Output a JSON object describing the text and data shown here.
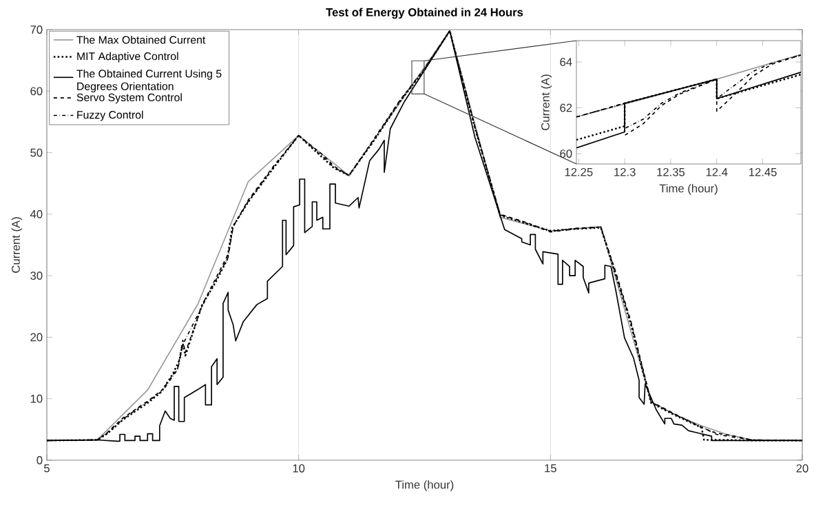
{
  "chart_data": [
    {
      "type": "line",
      "title": "Test of Energy Obtained in 24 Hours",
      "xlabel": "Time (hour)",
      "ylabel": "Current (A)",
      "xlim": [
        5,
        20
      ],
      "ylim": [
        0,
        70
      ],
      "xticks": [
        5,
        10,
        15,
        20
      ],
      "yticks": [
        0,
        10,
        20,
        30,
        40,
        50,
        60,
        70
      ],
      "grid": "x",
      "legend": "top left",
      "series": [
        {
          "name": "The Max Obtained Current",
          "color": "#999999",
          "line_style": "solid",
          "x": [
            5,
            6,
            7,
            8,
            9,
            10,
            11,
            12,
            13,
            14,
            15,
            16,
            17,
            17.5,
            18,
            18.5,
            19,
            20
          ],
          "values": [
            3.2,
            3.3,
            11.4,
            25.4,
            45.3,
            52.8,
            46.3,
            58,
            69.8,
            39.5,
            37.3,
            38,
            9.5,
            7.3,
            5.6,
            4.2,
            3.3,
            3.2
          ]
        },
        {
          "name": "MIT Adaptive Control",
          "color": "#000000",
          "line_style": "dotted",
          "x": [
            5,
            6,
            6.2,
            6.5,
            6.8,
            7,
            7.26,
            7.5,
            7.63,
            7.7,
            7.75,
            8.08,
            8.35,
            8.58,
            8.68,
            9,
            9.5,
            10,
            10.3,
            10.5,
            10.7,
            11,
            11.5,
            12,
            12.5,
            13,
            13.5,
            14,
            14.5,
            15,
            15.5,
            16,
            16.3,
            16.6,
            16.8,
            17,
            17.5,
            18,
            18.05,
            18.5,
            19,
            20
          ],
          "values": [
            3.2,
            3.3,
            4.3,
            6.5,
            8.2,
            9.3,
            11,
            14,
            16.2,
            19,
            17,
            25.2,
            28.9,
            32.6,
            37.8,
            42,
            47.5,
            52.8,
            50.5,
            49,
            47.5,
            46.3,
            52,
            58.2,
            63.5,
            69.8,
            54,
            39.8,
            38.5,
            37.3,
            37.6,
            37.8,
            30,
            22,
            15.5,
            9.3,
            7.2,
            5.3,
            3.3,
            3.3,
            3.2,
            3.2
          ]
        },
        {
          "name": "The Obtained Current Using 5 Degrees Orientation",
          "color": "#000000",
          "line_style": "solid",
          "x": [
            5,
            6,
            6.39,
            6.45,
            6.45,
            6.55,
            6.55,
            6.75,
            6.75,
            6.85,
            6.85,
            7.0,
            7.0,
            7.1,
            7.1,
            7.24,
            7.24,
            7.35,
            7.45,
            7.53,
            7.53,
            7.62,
            7.62,
            7.73,
            7.73,
            7.86,
            8.0,
            8.15,
            8.15,
            8.27,
            8.27,
            8.38,
            8.38,
            8.5,
            8.5,
            8.6,
            8.6,
            8.7,
            8.75,
            8.9,
            9.17,
            9.38,
            9.38,
            9.68,
            9.68,
            9.75,
            9.75,
            9.9,
            9.9,
            10.02,
            10.02,
            10.12,
            10.12,
            10.27,
            10.27,
            10.36,
            10.36,
            10.48,
            10.48,
            10.62,
            10.62,
            10.73,
            10.73,
            11.0,
            11.18,
            11.2,
            11.32,
            11.41,
            11.59,
            11.7,
            11.7,
            11.82,
            12.1,
            13,
            13.5,
            14.09,
            14.43,
            14.43,
            14.6,
            14.6,
            14.7,
            14.7,
            14.85,
            14.85,
            15.15,
            15.15,
            15.24,
            15.24,
            15.38,
            15.38,
            15.49,
            15.49,
            15.65,
            15.65,
            15.76,
            15.76,
            16.08,
            16.08,
            16.2,
            16.3,
            16.47,
            16.65,
            16.76,
            16.76,
            16.86,
            16.88,
            17.1,
            17.27,
            17.27,
            17.4,
            17.45,
            17.61,
            17.74,
            18.2,
            18.2,
            20
          ],
          "values": [
            3.2,
            3.3,
            3.1,
            3.1,
            4.2,
            4.2,
            3.2,
            3.2,
            3.9,
            3.9,
            3.2,
            3.2,
            4.3,
            4.3,
            3.2,
            3.2,
            5.6,
            8,
            6.8,
            6.5,
            12.0,
            12.0,
            6.3,
            6.3,
            10.2,
            10.8,
            11.5,
            12.3,
            9,
            9,
            15.2,
            16.5,
            12.3,
            13.5,
            25.5,
            27.3,
            24.4,
            22,
            19.4,
            22.5,
            25.3,
            26.3,
            29.1,
            31.5,
            39,
            39,
            33.4,
            34.9,
            41.2,
            41.5,
            45.7,
            45.7,
            37,
            38,
            42,
            42,
            39,
            39.5,
            37.6,
            37.6,
            44.9,
            44.9,
            41.8,
            41.3,
            42.7,
            41,
            45.4,
            48.7,
            50.5,
            52,
            46.8,
            53.9,
            58.3,
            69.8,
            52.5,
            37.5,
            36,
            35.5,
            35,
            36.7,
            36.7,
            34.3,
            31.9,
            33.9,
            33.5,
            28.6,
            28.6,
            32.5,
            31.5,
            30.0,
            30.0,
            32.5,
            31.5,
            29.7,
            27.2,
            28.8,
            29.5,
            31.7,
            31.5,
            27.5,
            19.9,
            16.6,
            13,
            10.2,
            9.1,
            12.4,
            8.2,
            5.9,
            6.8,
            6.8,
            5.9,
            5.7,
            4.8,
            3.9,
            3.2,
            3.2
          ]
        },
        {
          "name": "Servo System Control",
          "color": "#000000",
          "line_style": "dashed",
          "x": [
            5,
            6,
            6.2,
            6.5,
            6.8,
            7,
            7.3,
            7.6,
            7.7,
            7.75,
            8.1,
            8.35,
            8.6,
            8.7,
            9,
            9.5,
            10,
            10.3,
            10.5,
            10.7,
            11,
            11.5,
            12,
            12.5,
            13,
            13.5,
            14,
            14.5,
            15,
            15.5,
            16,
            16.3,
            16.6,
            16.8,
            17,
            17.5,
            18,
            18.3,
            18.6,
            19,
            20
          ],
          "values": [
            3.2,
            3.3,
            4.5,
            6.8,
            8.5,
            9.6,
            11.5,
            15,
            19.5,
            17.5,
            25.5,
            29.5,
            33.5,
            38,
            42.3,
            47.8,
            52.8,
            50.8,
            49.5,
            47.8,
            46.3,
            52.3,
            58.4,
            63.7,
            69.8,
            54.2,
            40,
            38.7,
            37.2,
            37.7,
            37.9,
            30.5,
            22.5,
            16,
            9.5,
            7.4,
            5.3,
            4.4,
            4,
            3.3,
            3.2
          ]
        },
        {
          "name": "Fuzzy Control",
          "color": "#000000",
          "line_style": "dashdot",
          "x": [
            5,
            6,
            6.2,
            6.5,
            6.8,
            7,
            7.3,
            7.6,
            7.7,
            8.1,
            8.35,
            8.6,
            8.7,
            9,
            9.5,
            10,
            10.3,
            10.5,
            10.7,
            11,
            11.5,
            12,
            12.5,
            13,
            13.5,
            14,
            14.5,
            15,
            15.5,
            16,
            16.3,
            16.6,
            16.8,
            17,
            17.5,
            18,
            18.3,
            18.6,
            19,
            20
          ],
          "values": [
            3.2,
            3.3,
            4.4,
            6.6,
            8.4,
            9.5,
            11.3,
            14.8,
            18.8,
            25.3,
            29.2,
            33,
            38,
            42.1,
            47.6,
            52.8,
            50.6,
            49.2,
            47.6,
            46.3,
            52.1,
            58.3,
            63.6,
            69.8,
            54.1,
            39.9,
            38.6,
            37.1,
            37.6,
            37.9,
            30.2,
            22.2,
            15.8,
            9.4,
            7.3,
            5.4,
            4.2,
            3.8,
            3.3,
            3.2
          ]
        }
      ]
    },
    {
      "type": "line",
      "xlabel": "Time (hour)",
      "ylabel": "Current (A)",
      "xlim": [
        12.2475,
        12.4915
      ],
      "ylim": [
        59.55,
        64.93
      ],
      "xticks": [
        12.25,
        12.3,
        12.35,
        12.4,
        12.45
      ],
      "yticks": [
        60,
        62,
        64
      ],
      "series": [
        {
          "color": "#999999",
          "line_style": "solid",
          "x": [
            12.2475,
            12.4,
            12.4915
          ],
          "values": [
            61.6,
            63.25,
            64.33
          ]
        },
        {
          "color": "#000000",
          "line_style": "dotted",
          "x": [
            12.2475,
            12.3,
            12.3,
            12.4,
            12.4,
            12.4915
          ],
          "values": [
            60.6,
            61.2,
            62.2,
            63.25,
            62.4,
            63.45
          ]
        },
        {
          "color": "#000000",
          "line_style": "solid",
          "x": [
            12.2475,
            12.3,
            12.3,
            12.4,
            12.4,
            12.4915
          ],
          "values": [
            60.25,
            60.95,
            62.2,
            63.25,
            62.4,
            63.55
          ]
        },
        {
          "color": "#000000",
          "line_style": "dashed",
          "x": [
            12.2475,
            12.3,
            12.3,
            12.32,
            12.34,
            12.36,
            12.4,
            12.4,
            12.42,
            12.44,
            12.46,
            12.4915
          ],
          "values": [
            61.6,
            62.2,
            60.8,
            61.3,
            62.1,
            62.6,
            63.25,
            61.85,
            62.6,
            63.4,
            63.9,
            64.3
          ]
        },
        {
          "color": "#000000",
          "line_style": "dashdot",
          "x": [
            12.2475,
            12.3,
            12.3,
            12.32,
            12.34,
            12.36,
            12.4,
            12.4,
            12.42,
            12.44,
            12.46,
            12.4915
          ],
          "values": [
            61.6,
            62.2,
            61.1,
            61.5,
            62.2,
            62.65,
            63.25,
            62.4,
            63.0,
            63.6,
            63.95,
            64.3
          ]
        }
      ]
    }
  ]
}
